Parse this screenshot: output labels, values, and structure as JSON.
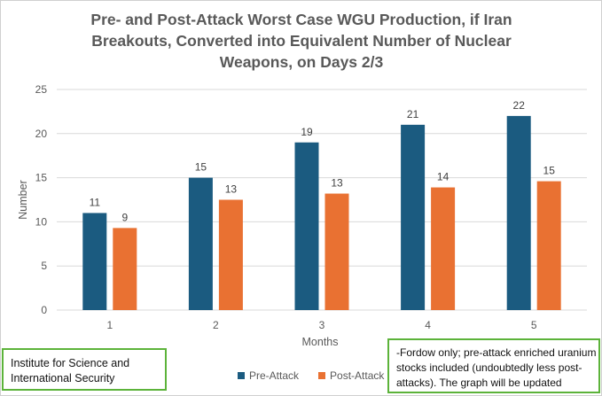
{
  "chart_data": {
    "type": "bar",
    "title": "Pre- and Post-Attack Worst Case WGU Production, if Iran Breakouts, Converted into Equivalent Number of Nuclear Weapons, on Days 2/3",
    "xlabel": "Months",
    "ylabel": "Number",
    "categories": [
      "1",
      "2",
      "3",
      "4",
      "5"
    ],
    "ylim": [
      0,
      25
    ],
    "yticks": [
      "0",
      "5",
      "10",
      "15",
      "20",
      "25"
    ],
    "grid": true,
    "legend_position": "bottom",
    "series": [
      {
        "name": "Pre-Attack",
        "color": "#1b5b80",
        "values": [
          11,
          15,
          19,
          21,
          22
        ],
        "labels": [
          "11",
          "15",
          "19",
          "21",
          "22"
        ]
      },
      {
        "name": "Post-Attack",
        "color": "#e97132",
        "values": [
          9.3,
          12.5,
          13.2,
          13.9,
          14.6
        ],
        "labels": [
          "9",
          "13",
          "13",
          "14",
          "15"
        ]
      }
    ]
  },
  "source_box": "Institute for Science and International Security",
  "note_box": "-Fordow only; pre-attack enriched uranium stocks  included (undoubtedly less post-attacks). The graph will be updated"
}
